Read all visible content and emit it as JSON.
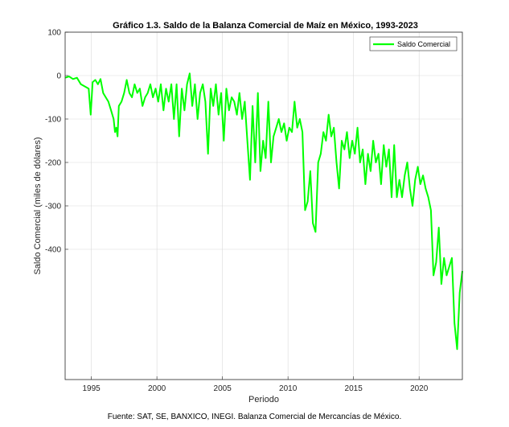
{
  "chart_data": {
    "type": "line",
    "title": "Gráfico 1.3. Saldo de la Balanza Comercial de Maíz en México, 1993-2023",
    "xlabel": "Periodo",
    "ylabel": "Saldo Comercial (miles de dólares)",
    "xlim": [
      1993,
      2023.3
    ],
    "ylim": [
      -700,
      100
    ],
    "xticks": [
      1995,
      2000,
      2005,
      2010,
      2015,
      2020
    ],
    "yticks": [
      100,
      0,
      -100,
      -200,
      -300,
      -400
    ],
    "grid": true,
    "legend": "top-right",
    "color": "#00ff00",
    "series": [
      {
        "name": "Saldo Comercial",
        "points": [
          [
            1993.0,
            -5
          ],
          [
            1993.3,
            -2
          ],
          [
            1993.6,
            -8
          ],
          [
            1993.9,
            -5
          ],
          [
            1994.2,
            -20
          ],
          [
            1994.5,
            -25
          ],
          [
            1994.8,
            -30
          ],
          [
            1994.95,
            -90
          ],
          [
            1995.1,
            -15
          ],
          [
            1995.3,
            -10
          ],
          [
            1995.5,
            -20
          ],
          [
            1995.7,
            -8
          ],
          [
            1995.9,
            -40
          ],
          [
            1996.1,
            -50
          ],
          [
            1996.3,
            -60
          ],
          [
            1996.5,
            -80
          ],
          [
            1996.7,
            -100
          ],
          [
            1996.8,
            -130
          ],
          [
            1996.9,
            -120
          ],
          [
            1997.0,
            -140
          ],
          [
            1997.1,
            -70
          ],
          [
            1997.3,
            -60
          ],
          [
            1997.5,
            -40
          ],
          [
            1997.7,
            -10
          ],
          [
            1997.9,
            -40
          ],
          [
            1998.1,
            -50
          ],
          [
            1998.3,
            -20
          ],
          [
            1998.5,
            -40
          ],
          [
            1998.7,
            -30
          ],
          [
            1998.9,
            -70
          ],
          [
            1999.1,
            -50
          ],
          [
            1999.3,
            -40
          ],
          [
            1999.5,
            -20
          ],
          [
            1999.7,
            -50
          ],
          [
            1999.9,
            -30
          ],
          [
            2000.1,
            -60
          ],
          [
            2000.3,
            -20
          ],
          [
            2000.5,
            -80
          ],
          [
            2000.7,
            -30
          ],
          [
            2000.9,
            -60
          ],
          [
            2001.1,
            -20
          ],
          [
            2001.3,
            -100
          ],
          [
            2001.5,
            -20
          ],
          [
            2001.7,
            -140
          ],
          [
            2001.9,
            -30
          ],
          [
            2002.1,
            -80
          ],
          [
            2002.3,
            -20
          ],
          [
            2002.5,
            5
          ],
          [
            2002.7,
            -70
          ],
          [
            2002.9,
            -20
          ],
          [
            2003.1,
            -100
          ],
          [
            2003.3,
            -40
          ],
          [
            2003.5,
            -20
          ],
          [
            2003.7,
            -60
          ],
          [
            2003.9,
            -180
          ],
          [
            2004.1,
            -30
          ],
          [
            2004.3,
            -70
          ],
          [
            2004.5,
            -20
          ],
          [
            2004.7,
            -90
          ],
          [
            2004.9,
            -40
          ],
          [
            2005.1,
            -150
          ],
          [
            2005.3,
            -30
          ],
          [
            2005.5,
            -80
          ],
          [
            2005.7,
            -50
          ],
          [
            2005.9,
            -60
          ],
          [
            2006.1,
            -90
          ],
          [
            2006.3,
            -40
          ],
          [
            2006.5,
            -100
          ],
          [
            2006.7,
            -60
          ],
          [
            2006.9,
            -150
          ],
          [
            2007.1,
            -240
          ],
          [
            2007.3,
            -70
          ],
          [
            2007.5,
            -200
          ],
          [
            2007.7,
            -40
          ],
          [
            2007.9,
            -220
          ],
          [
            2008.1,
            -150
          ],
          [
            2008.3,
            -190
          ],
          [
            2008.5,
            -60
          ],
          [
            2008.7,
            -200
          ],
          [
            2008.9,
            -140
          ],
          [
            2009.1,
            -120
          ],
          [
            2009.3,
            -100
          ],
          [
            2009.5,
            -130
          ],
          [
            2009.7,
            -110
          ],
          [
            2009.9,
            -150
          ],
          [
            2010.1,
            -120
          ],
          [
            2010.3,
            -130
          ],
          [
            2010.5,
            -60
          ],
          [
            2010.7,
            -120
          ],
          [
            2010.9,
            -100
          ],
          [
            2011.1,
            -130
          ],
          [
            2011.3,
            -310
          ],
          [
            2011.5,
            -290
          ],
          [
            2011.7,
            -220
          ],
          [
            2011.9,
            -340
          ],
          [
            2012.1,
            -360
          ],
          [
            2012.3,
            -200
          ],
          [
            2012.5,
            -180
          ],
          [
            2012.7,
            -130
          ],
          [
            2012.9,
            -150
          ],
          [
            2013.1,
            -90
          ],
          [
            2013.3,
            -140
          ],
          [
            2013.5,
            -120
          ],
          [
            2013.7,
            -200
          ],
          [
            2013.9,
            -260
          ],
          [
            2014.1,
            -150
          ],
          [
            2014.3,
            -170
          ],
          [
            2014.5,
            -130
          ],
          [
            2014.7,
            -190
          ],
          [
            2014.9,
            -150
          ],
          [
            2015.1,
            -180
          ],
          [
            2015.3,
            -120
          ],
          [
            2015.5,
            -200
          ],
          [
            2015.7,
            -170
          ],
          [
            2015.9,
            -250
          ],
          [
            2016.1,
            -180
          ],
          [
            2016.3,
            -220
          ],
          [
            2016.5,
            -150
          ],
          [
            2016.7,
            -200
          ],
          [
            2016.9,
            -180
          ],
          [
            2017.1,
            -250
          ],
          [
            2017.3,
            -160
          ],
          [
            2017.5,
            -210
          ],
          [
            2017.7,
            -170
          ],
          [
            2017.9,
            -280
          ],
          [
            2018.1,
            -160
          ],
          [
            2018.3,
            -280
          ],
          [
            2018.5,
            -240
          ],
          [
            2018.7,
            -280
          ],
          [
            2018.9,
            -230
          ],
          [
            2019.1,
            -200
          ],
          [
            2019.3,
            -260
          ],
          [
            2019.5,
            -300
          ],
          [
            2019.7,
            -240
          ],
          [
            2019.9,
            -210
          ],
          [
            2020.1,
            -250
          ],
          [
            2020.3,
            -230
          ],
          [
            2020.5,
            -260
          ],
          [
            2020.7,
            -280
          ],
          [
            2020.9,
            -310
          ],
          [
            2021.1,
            -460
          ],
          [
            2021.3,
            -430
          ],
          [
            2021.5,
            -350
          ],
          [
            2021.7,
            -480
          ],
          [
            2021.9,
            -420
          ],
          [
            2022.1,
            -460
          ],
          [
            2022.3,
            -440
          ],
          [
            2022.5,
            -420
          ],
          [
            2022.7,
            -570
          ],
          [
            2022.9,
            -630
          ],
          [
            2023.1,
            -500
          ],
          [
            2023.3,
            -450
          ]
        ]
      }
    ]
  },
  "source_note": "Fuente: SAT, SE, BANXICO, INEGI. Balanza Comercial de Mercancías de México."
}
